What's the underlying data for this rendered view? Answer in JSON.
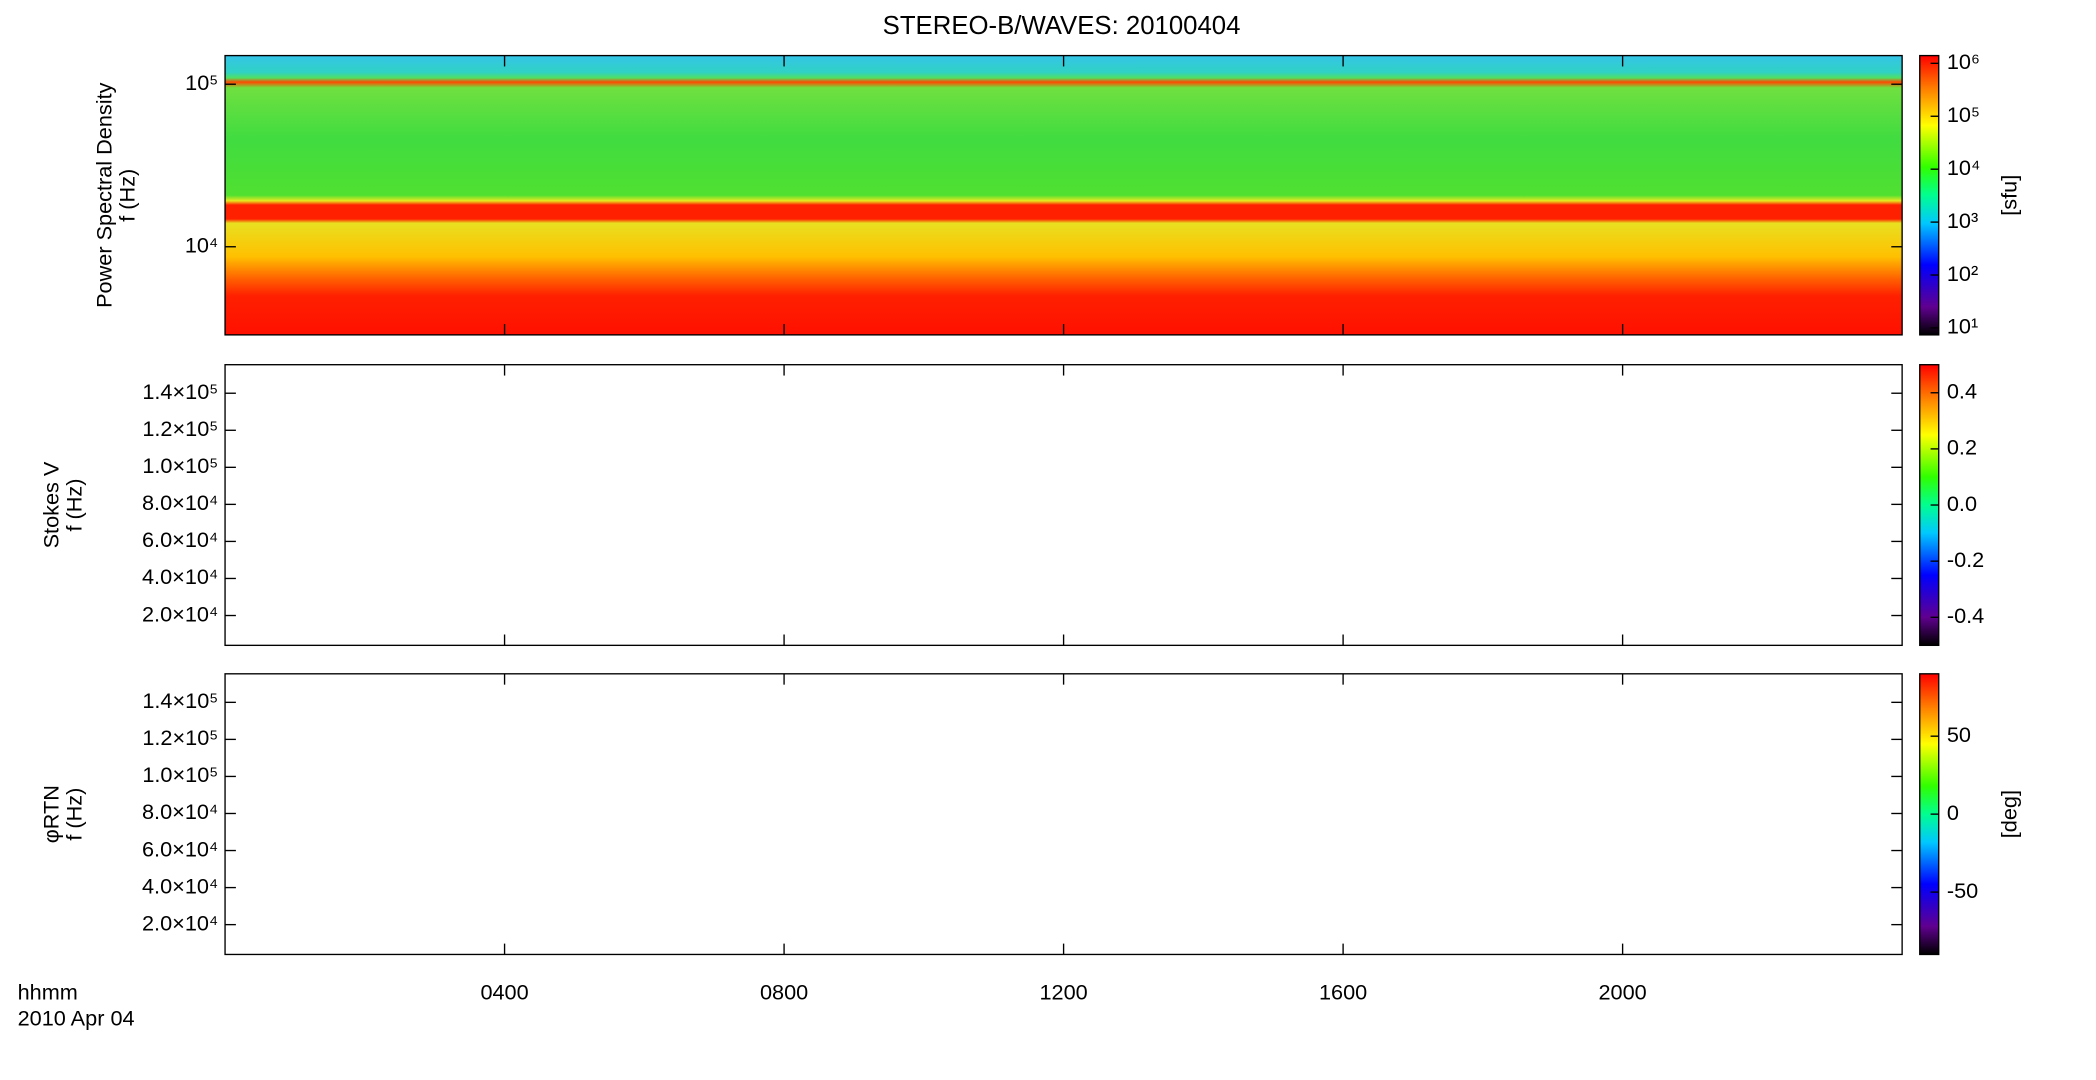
{
  "chart_data": [
    {
      "type": "spectrogram",
      "title": "STEREO-B/WAVES: 20100404",
      "ylabel": [
        "Power Spectral Density",
        "f (Hz)"
      ],
      "yscale": "log",
      "ylim": [
        2870,
        150000
      ],
      "yticks": [
        {
          "value": 10000,
          "label": "10⁴"
        },
        {
          "value": 100000,
          "label": "10⁵"
        }
      ],
      "xlim": [
        0,
        24
      ],
      "colorbar": {
        "label": "[sfu]",
        "scale": "log",
        "zlim": [
          7.4,
          1400000
        ],
        "zticks": [
          {
            "value": 10,
            "label": "10¹"
          },
          {
            "value": 100,
            "label": "10²"
          },
          {
            "value": 1000,
            "label": "10³"
          },
          {
            "value": 10000,
            "label": "10⁴"
          },
          {
            "value": 100000,
            "label": "10⁵"
          },
          {
            "value": 1000000,
            "label": "10⁶"
          }
        ]
      }
    },
    {
      "type": "spectrogram",
      "ylabel": [
        "Stokes V",
        "f (Hz)"
      ],
      "yscale": "linear",
      "ylim": [
        3900,
        155400
      ],
      "yticks": [
        {
          "value": 20000,
          "label": "2.0×10⁴"
        },
        {
          "value": 40000,
          "label": "4.0×10⁴"
        },
        {
          "value": 60000,
          "label": "6.0×10⁴"
        },
        {
          "value": 80000,
          "label": "8.0×10⁴"
        },
        {
          "value": 100000,
          "label": "1.0×10⁵"
        },
        {
          "value": 120000,
          "label": "1.2×10⁵"
        },
        {
          "value": 140000,
          "label": "1.4×10⁵"
        }
      ],
      "xlim": [
        0,
        24
      ],
      "colorbar": {
        "scale": "linear",
        "zlim": [
          -0.5,
          0.5
        ],
        "zticks": [
          -0.4,
          -0.2,
          {
            "value": 0,
            "label": "0.0"
          },
          0.2,
          0.4
        ]
      }
    },
    {
      "type": "spectrogram",
      "ylabel": [
        "φRTN",
        "f (Hz)"
      ],
      "yscale": "linear",
      "ylim": [
        3900,
        155400
      ],
      "yticks": [
        {
          "value": 20000,
          "label": "2.0×10⁴"
        },
        {
          "value": 40000,
          "label": "4.0×10⁴"
        },
        {
          "value": 60000,
          "label": "6.0×10⁴"
        },
        {
          "value": 80000,
          "label": "8.0×10⁴"
        },
        {
          "value": 100000,
          "label": "1.0×10⁵"
        },
        {
          "value": 120000,
          "label": "1.2×10⁵"
        },
        {
          "value": 140000,
          "label": "1.4×10⁵"
        }
      ],
      "xlim": [
        0,
        24
      ],
      "xticks": [
        {
          "value": 4,
          "label": "0400"
        },
        {
          "value": 8,
          "label": "0800"
        },
        {
          "value": 12,
          "label": "1200"
        },
        {
          "value": 16,
          "label": "1600"
        },
        {
          "value": 20,
          "label": "2000"
        }
      ],
      "xlabel": [
        "hhmm",
        "2010 Apr 04"
      ],
      "colorbar": {
        "label": "[deg]",
        "scale": "linear",
        "zlim": [
          -90,
          90
        ],
        "zticks": [
          -50,
          0,
          50
        ]
      }
    }
  ]
}
